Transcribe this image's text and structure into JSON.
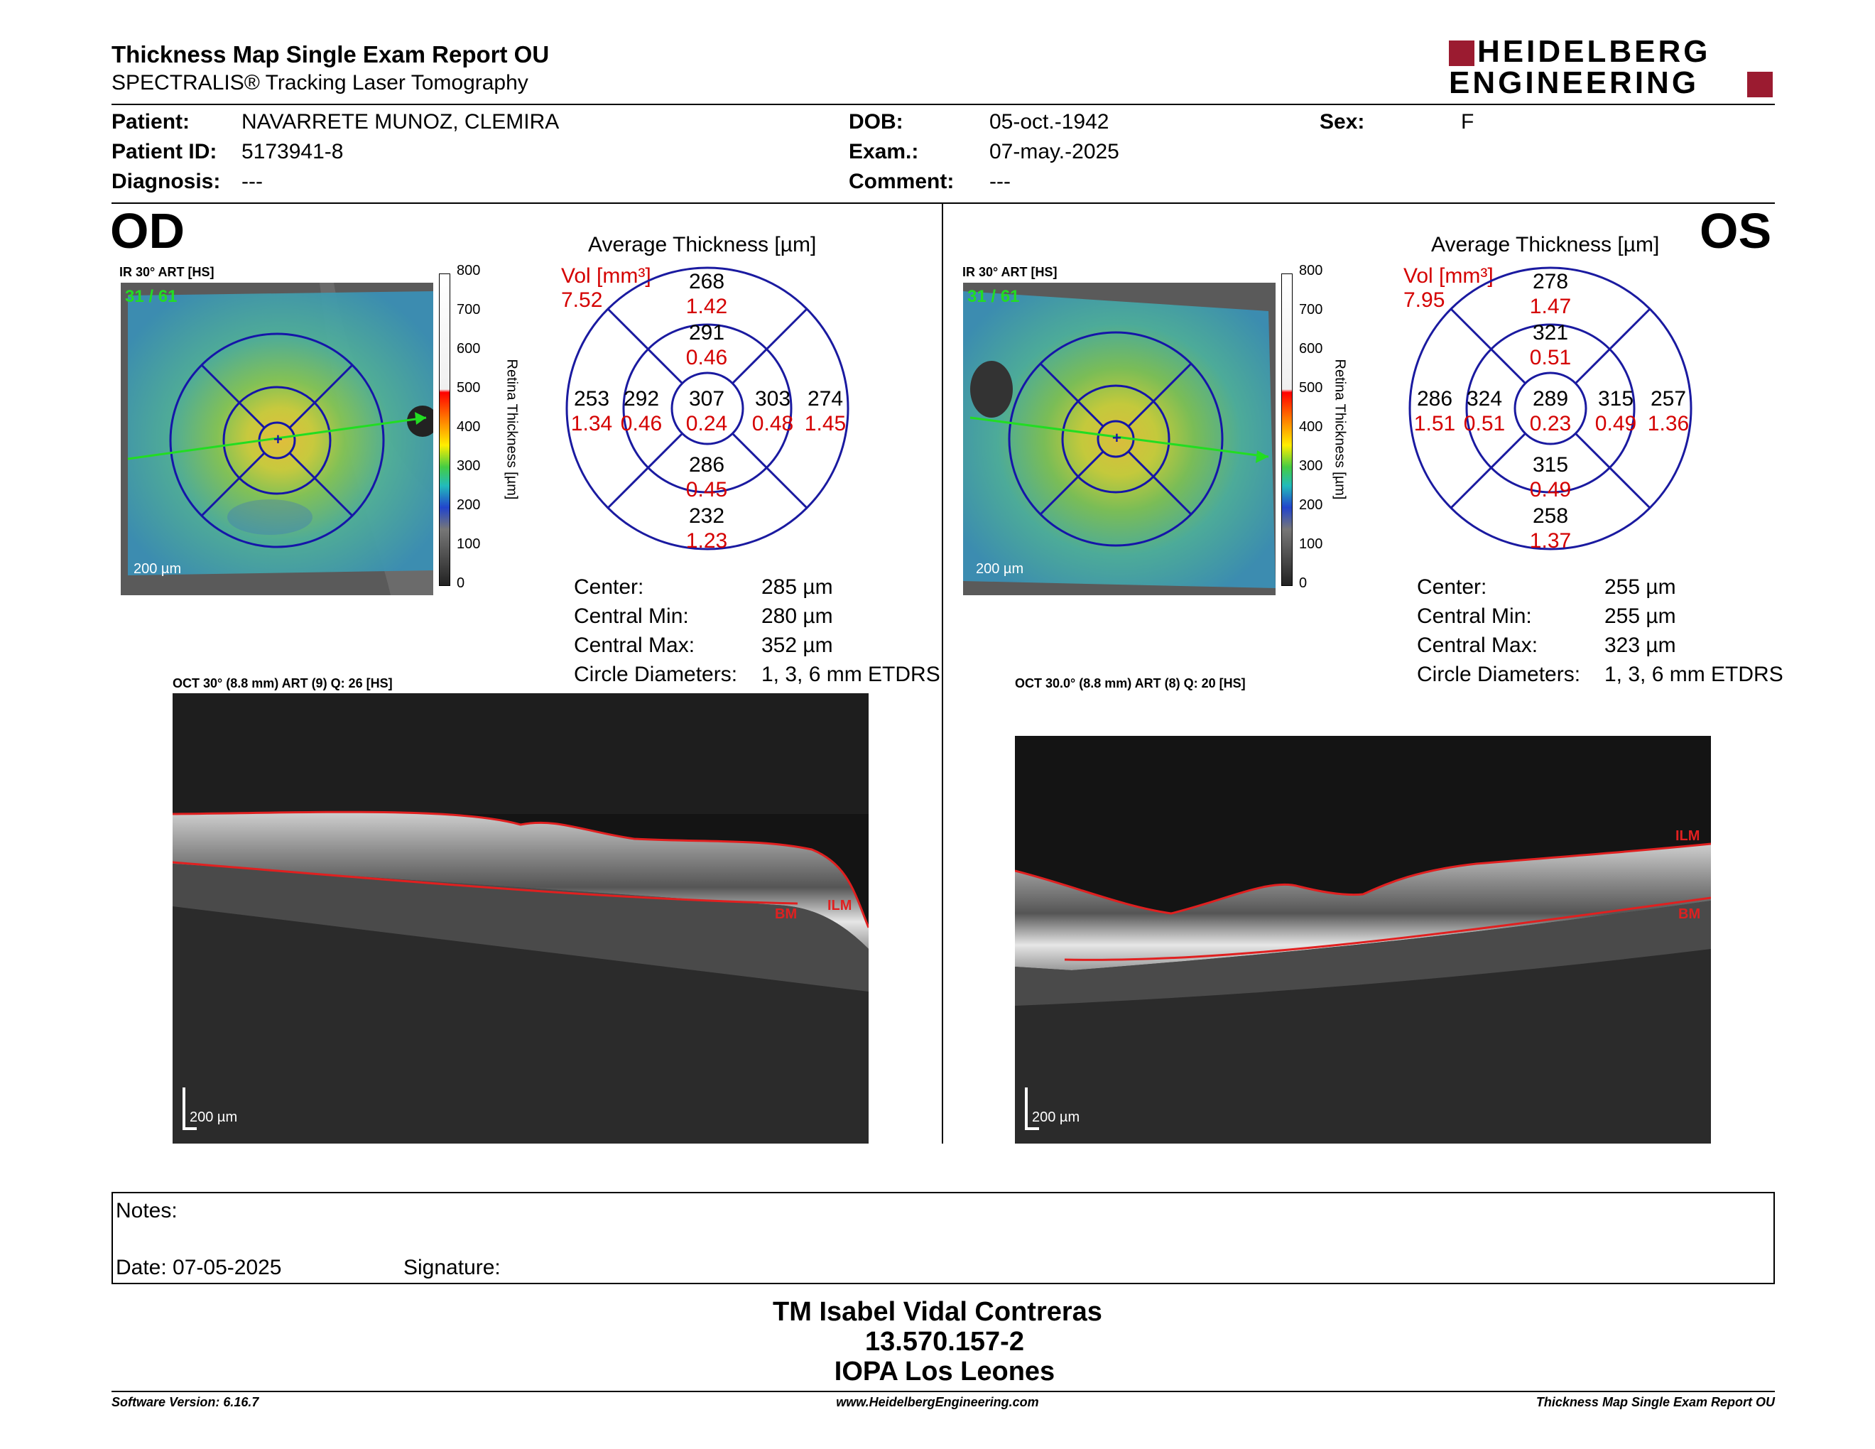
{
  "report": {
    "title": "Thickness Map Single Exam Report OU",
    "subtitle": "SPECTRALIS® Tracking Laser Tomography",
    "logo_line1": "HEIDELBERG",
    "logo_line2": "ENGINEERING"
  },
  "patient": {
    "patient_label": "Patient:",
    "patient_value": "NAVARRETE MUNOZ, CLEMIRA",
    "id_label": "Patient ID:",
    "id_value": "5173941-8",
    "diagnosis_label": "Diagnosis:",
    "diagnosis_value": "---",
    "dob_label": "DOB:",
    "dob_value": "05-oct.-1942",
    "exam_label": "Exam.:",
    "exam_value": "07-may.-2025",
    "comment_label": "Comment:",
    "comment_value": "---",
    "sex_label": "Sex:",
    "sex_value": "F"
  },
  "colorbar": {
    "ticks": [
      "800",
      "700",
      "600",
      "500",
      "400",
      "300",
      "200",
      "100",
      "0"
    ],
    "label": "Retina Thickness [µm]"
  },
  "od": {
    "eye": "OD",
    "ir_label": "IR 30° ART [HS]",
    "frames": "31 / 61",
    "scale": "200 µm",
    "avg_title": "Average Thickness [µm]",
    "vol_label": "Vol [mm³]",
    "vol_value": "7.52",
    "sectors": {
      "center": {
        "t": "307",
        "v": "0.24"
      },
      "inner_sup": {
        "t": "291",
        "v": "0.46"
      },
      "inner_inf": {
        "t": "286",
        "v": "0.45"
      },
      "inner_left": {
        "t": "292",
        "v": "0.46"
      },
      "inner_right": {
        "t": "303",
        "v": "0.48"
      },
      "outer_sup": {
        "t": "268",
        "v": "1.42"
      },
      "outer_inf": {
        "t": "232",
        "v": "1.23"
      },
      "outer_left": {
        "t": "253",
        "v": "1.34"
      },
      "outer_right": {
        "t": "274",
        "v": "1.45"
      }
    },
    "stats": {
      "center_label": "Center:",
      "center_value": "285 µm",
      "min_label": "Central Min:",
      "min_value": "280 µm",
      "max_label": "Central Max:",
      "max_value": "352 µm",
      "circ_label": "Circle Diameters:",
      "circ_value": "1, 3, 6 mm ETDRS"
    },
    "oct_label": "OCT 30° (8.8 mm) ART (9) Q: 26 [HS]",
    "oct_scale": "200 µm",
    "bm": "BM",
    "ilm": "ILM"
  },
  "os": {
    "eye": "OS",
    "ir_label": "IR 30° ART [HS]",
    "frames": "31 / 61",
    "scale": "200 µm",
    "avg_title": "Average Thickness [µm]",
    "vol_label": "Vol [mm³]",
    "vol_value": "7.95",
    "sectors": {
      "center": {
        "t": "289",
        "v": "0.23"
      },
      "inner_sup": {
        "t": "321",
        "v": "0.51"
      },
      "inner_inf": {
        "t": "315",
        "v": "0.49"
      },
      "inner_left": {
        "t": "324",
        "v": "0.51"
      },
      "inner_right": {
        "t": "315",
        "v": "0.49"
      },
      "outer_sup": {
        "t": "278",
        "v": "1.47"
      },
      "outer_inf": {
        "t": "258",
        "v": "1.37"
      },
      "outer_left": {
        "t": "286",
        "v": "1.51"
      },
      "outer_right": {
        "t": "257",
        "v": "1.36"
      }
    },
    "stats": {
      "center_label": "Center:",
      "center_value": "255 µm",
      "min_label": "Central Min:",
      "min_value": "255 µm",
      "max_label": "Central Max:",
      "max_value": "323 µm",
      "circ_label": "Circle Diameters:",
      "circ_value": "1, 3, 6 mm ETDRS"
    },
    "oct_label": "OCT 30.0° (8.8 mm) ART (8) Q: 20 [HS]",
    "oct_scale": "200 µm",
    "bm": "BM",
    "ilm": "ILM"
  },
  "notes": {
    "notes_label": "Notes:",
    "date_label": "Date: 07-05-2025",
    "signature_label": "Signature:"
  },
  "signoff": {
    "name": "TM Isabel Vidal Contreras",
    "id": "13.570.157-2",
    "org": "IOPA Los Leones"
  },
  "footer": {
    "software": "Software Version: 6.16.7",
    "website": "www.HeidelbergEngineering.com",
    "report": "Thickness Map Single Exam Report OU"
  },
  "colors": {
    "logo_red": "#9b1b30",
    "value_red": "#d40000",
    "grid_blue": "#1a1aa0"
  }
}
